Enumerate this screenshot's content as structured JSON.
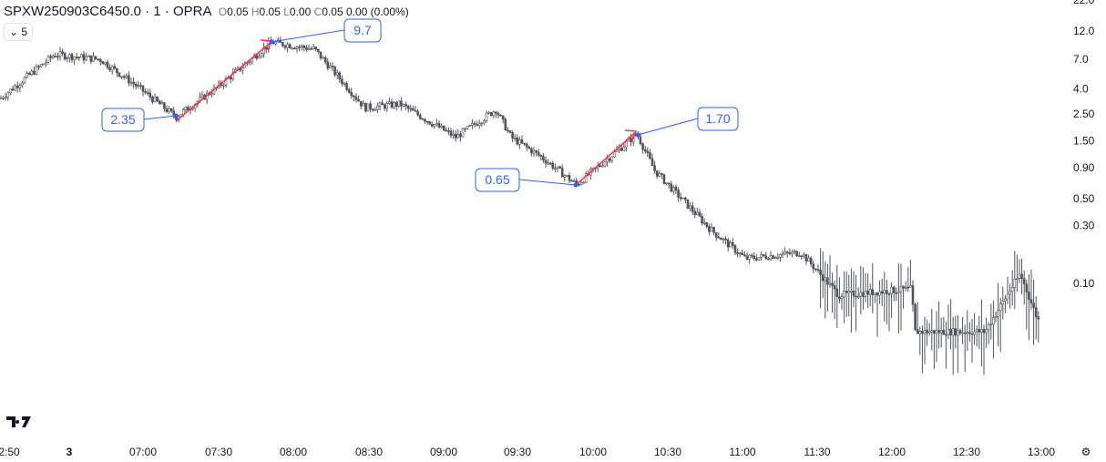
{
  "header": {
    "symbol": "SPXW250903C6450.0 · 1 · OPRA",
    "o_label": "O",
    "o": "0.05",
    "h_label": "H",
    "h": "0.05",
    "l_label": "L",
    "l": "0.00",
    "c_label": "C",
    "c": "0.05",
    "change": "0.00 (0.00%)",
    "collapse_count": "5"
  },
  "colors": {
    "candle": "#50535e",
    "annotation": "#2962ff",
    "arrow": "#f23645"
  },
  "chart_data": {
    "type": "candlestick",
    "y_scale": "log",
    "y_ticks": [
      "22.0",
      "12.0",
      "7.0",
      "4.0",
      "2.50",
      "1.50",
      "0.90",
      "0.50",
      "0.30",
      "0.10"
    ],
    "x_ticks": [
      "2:50",
      "3",
      "07:00",
      "07:30",
      "08:00",
      "08:30",
      "09:00",
      "09:30",
      "10:00",
      "10:30",
      "11:00",
      "11:30",
      "12:00",
      "12:30",
      "13:00"
    ],
    "approx_path": [
      [
        "06:03",
        3.3
      ],
      [
        "06:25",
        7.7
      ],
      [
        "06:43",
        7.0
      ],
      [
        "06:57",
        4.3
      ],
      [
        "07:13",
        2.35
      ],
      [
        "07:30",
        4.2
      ],
      [
        "07:51",
        9.7
      ],
      [
        "08:08",
        8.5
      ],
      [
        "08:28",
        2.8
      ],
      [
        "08:42",
        3.0
      ],
      [
        "09:04",
        1.6
      ],
      [
        "09:20",
        2.7
      ],
      [
        "09:26",
        1.6
      ],
      [
        "09:38",
        1.1
      ],
      [
        "09:52",
        0.65
      ],
      [
        "10:16",
        1.7
      ],
      [
        "10:23",
        0.85
      ],
      [
        "10:38",
        0.4
      ],
      [
        "10:45",
        0.28
      ],
      [
        "10:59",
        0.16
      ],
      [
        "11:21",
        0.18
      ],
      [
        "11:36",
        0.08
      ],
      [
        "12:05",
        0.09
      ],
      [
        "12:06",
        0.04
      ],
      [
        "12:34",
        0.04
      ],
      [
        "12:48",
        0.12
      ],
      [
        "12:55",
        0.05
      ]
    ],
    "annotations": [
      {
        "time": "07:13",
        "price": "2.35"
      },
      {
        "time": "07:51",
        "price": "9.7"
      },
      {
        "time": "09:52",
        "price": "0.65"
      },
      {
        "time": "10:16",
        "price": "1.70"
      }
    ]
  }
}
